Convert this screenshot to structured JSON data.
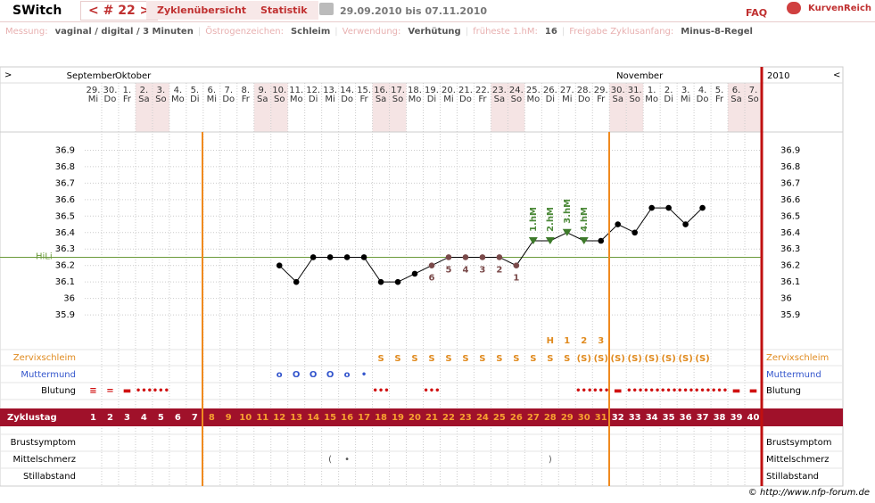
{
  "header": {
    "title": "SWitch",
    "cycle": "< # 22 >",
    "tabs": [
      "Zyklenübersicht",
      "Statistik"
    ],
    "range": "29.09.2010 bis 07.11.2010",
    "faq": "FAQ",
    "brand": "KurvenReich"
  },
  "info": [
    {
      "label": "Messung:",
      "value": "vaginal / digital / 3 Minuten"
    },
    {
      "label": "Östrogenzeichen:",
      "value": "Schleim"
    },
    {
      "label": "Verwendung:",
      "value": "Verhütung"
    },
    {
      "label": "früheste 1.hM:",
      "value": "16"
    },
    {
      "label": "Freigabe Zyklusanfang:",
      "value": "Minus-8-Regel"
    }
  ],
  "info_separator": "|",
  "nav": {
    "left": ">",
    "right": "<"
  },
  "months": [
    "September",
    "Oktober",
    "November"
  ],
  "year": "2010",
  "days": {
    "dates": [
      "29.",
      "30.",
      "1.",
      "2.",
      "3.",
      "4.",
      "5.",
      "6.",
      "7.",
      "8.",
      "9.",
      "10.",
      "11.",
      "12.",
      "13.",
      "14.",
      "15.",
      "16.",
      "17.",
      "18.",
      "19.",
      "20.",
      "21.",
      "22.",
      "23.",
      "24.",
      "25.",
      "26.",
      "27.",
      "28.",
      "29.",
      "30.",
      "31.",
      "1.",
      "2.",
      "3.",
      "4.",
      "5.",
      "6.",
      "7."
    ],
    "weekdays": [
      "Mi",
      "Do",
      "Fr",
      "Sa",
      "So",
      "Mo",
      "Di",
      "Mi",
      "Do",
      "Fr",
      "Sa",
      "So",
      "Mo",
      "Di",
      "Mi",
      "Do",
      "Fr",
      "Sa",
      "So",
      "Mo",
      "Di",
      "Mi",
      "Do",
      "Fr",
      "Sa",
      "So",
      "Mo",
      "Di",
      "Mi",
      "Do",
      "Fr",
      "Sa",
      "So",
      "Mo",
      "Di",
      "Mi",
      "Do",
      "Fr",
      "Sa",
      "So"
    ]
  },
  "chart_data": {
    "type": "line",
    "color": "#000000",
    "x": [
      1,
      2,
      3,
      4,
      5,
      6,
      7,
      8,
      9,
      10,
      11,
      12,
      13,
      14,
      15,
      16,
      17,
      18,
      19,
      20,
      21,
      22,
      23,
      24,
      25,
      26,
      27,
      28,
      29,
      30,
      31,
      32,
      33,
      34,
      35,
      36,
      37,
      38,
      39,
      40
    ],
    "values": [
      null,
      null,
      null,
      null,
      null,
      null,
      null,
      null,
      null,
      null,
      null,
      36.2,
      36.1,
      36.25,
      36.25,
      36.25,
      36.25,
      36.1,
      36.1,
      36.15,
      36.2,
      36.25,
      36.25,
      36.25,
      36.25,
      36.2,
      36.35,
      36.35,
      36.4,
      36.35,
      36.35,
      36.45,
      36.4,
      36.55,
      36.55,
      36.45,
      36.55,
      null,
      null,
      null
    ],
    "xlim": [
      0.5,
      40.5
    ],
    "ylim": [
      35.7,
      37.0
    ],
    "yticks": [
      35.9,
      36,
      36.1,
      36.2,
      36.3,
      36.4,
      36.5,
      36.6,
      36.7,
      36.8,
      36.9
    ],
    "grid": true,
    "hili": {
      "label": "HiLi",
      "value": 36.25,
      "color": "#6a9a3a"
    },
    "countdown": [
      null,
      null,
      null,
      null,
      null,
      null,
      null,
      null,
      null,
      null,
      null,
      null,
      null,
      null,
      null,
      null,
      null,
      null,
      null,
      null,
      "6",
      "5",
      "4",
      "3",
      "2",
      "1",
      null,
      null,
      null,
      null,
      null,
      null,
      null,
      null,
      null,
      null,
      null,
      null,
      null,
      null
    ],
    "hm": [
      null,
      null,
      null,
      null,
      null,
      null,
      null,
      null,
      null,
      null,
      null,
      null,
      null,
      null,
      null,
      null,
      null,
      null,
      null,
      null,
      null,
      null,
      null,
      null,
      null,
      null,
      "1.hM",
      "2.hM",
      "3.hM",
      "4.hM",
      null,
      null,
      null,
      null,
      null,
      null,
      null,
      null,
      null,
      null
    ]
  },
  "rows": {
    "zervix": {
      "label": "Zervixschleim",
      "top": [
        null,
        null,
        null,
        null,
        null,
        null,
        null,
        null,
        null,
        null,
        null,
        null,
        null,
        null,
        null,
        null,
        null,
        null,
        null,
        null,
        null,
        null,
        null,
        null,
        null,
        null,
        null,
        "H",
        "1",
        "2",
        "3",
        null,
        null,
        null,
        null,
        null,
        null,
        null,
        null,
        null
      ],
      "values": [
        null,
        null,
        null,
        null,
        null,
        null,
        null,
        null,
        null,
        null,
        null,
        null,
        null,
        null,
        null,
        null,
        null,
        "S",
        "S",
        "S",
        "S",
        "S",
        "S",
        "S",
        "S",
        "S",
        "S",
        "S",
        "S",
        "(S)",
        "(S)",
        "(S)",
        "(S)",
        "(S)",
        "(S)",
        "(S)",
        "(S)",
        null,
        null,
        null
      ]
    },
    "muttermund": {
      "label": "Muttermund",
      "values": [
        null,
        null,
        null,
        null,
        null,
        null,
        null,
        null,
        null,
        null,
        null,
        "o",
        "O",
        "O",
        "O",
        "o",
        "•",
        null,
        null,
        null,
        null,
        null,
        null,
        null,
        null,
        null,
        null,
        null,
        null,
        null,
        null,
        null,
        null,
        null,
        null,
        null,
        null,
        null,
        null,
        null
      ]
    },
    "blutung": {
      "label": "Blutung",
      "values": [
        "≡",
        "=",
        "▬",
        "•••",
        "•••",
        null,
        null,
        null,
        null,
        null,
        null,
        null,
        null,
        null,
        null,
        null,
        null,
        "•••",
        null,
        null,
        "•••",
        null,
        null,
        null,
        null,
        null,
        null,
        null,
        null,
        "•••",
        "•••",
        "▬",
        "•••",
        "•••",
        "•••",
        "•••",
        "•••",
        "•••",
        "▬",
        "▬"
      ]
    },
    "zyklustag": {
      "label": "Zyklustag"
    },
    "brust": {
      "label": "Brustsymptom"
    },
    "mittel": {
      "label": "Mittelschmerz",
      "values": [
        null,
        null,
        null,
        null,
        null,
        null,
        null,
        null,
        null,
        null,
        null,
        null,
        null,
        null,
        "(",
        "•",
        null,
        null,
        null,
        null,
        null,
        null,
        null,
        null,
        null,
        null,
        null,
        ")",
        null,
        null,
        null,
        null,
        null,
        null,
        null,
        null,
        null,
        null,
        null,
        null
      ]
    },
    "still": {
      "label": "Stillabstand"
    }
  },
  "footer": "© http://www.nfp-forum.de"
}
